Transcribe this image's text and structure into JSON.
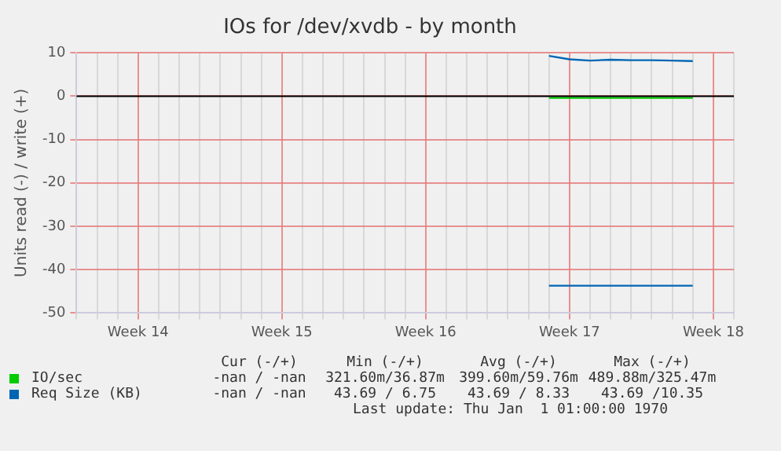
{
  "chart_data": {
    "type": "line",
    "title": "IOs for /dev/xvdb - by month",
    "ylabel": "Units read (-) / write (+)",
    "categories": [
      null,
      null,
      null,
      "Week 14",
      null,
      null,
      null,
      null,
      null,
      null,
      "Week 15",
      null,
      null,
      null,
      null,
      null,
      null,
      "Week 16",
      null,
      null,
      null,
      null,
      null,
      null,
      "Week 17",
      null,
      null,
      null,
      null,
      null,
      null,
      "Week 18",
      null
    ],
    "ylim": [
      -50,
      10
    ],
    "yticks": [
      10,
      0,
      -10,
      -20,
      -30,
      -40,
      -50
    ],
    "grid": true,
    "legend": "bottom",
    "marker": "none",
    "line_style": "solid",
    "ref_lines": [
      {
        "axis": "y",
        "value": 0,
        "color": "#000000"
      }
    ],
    "series": [
      {
        "name": "IO/sec",
        "color": "#00cc00",
        "values": [
          null,
          null,
          null,
          null,
          null,
          null,
          null,
          null,
          null,
          null,
          null,
          null,
          null,
          null,
          null,
          null,
          null,
          null,
          null,
          null,
          null,
          null,
          null,
          -0.4,
          -0.4,
          -0.4,
          -0.4,
          -0.4,
          -0.4,
          -0.4,
          -0.4,
          null,
          null
        ]
      },
      {
        "name": "Req Size (KB)",
        "color": "#0066b3",
        "values": [
          null,
          null,
          null,
          null,
          null,
          null,
          null,
          null,
          null,
          null,
          null,
          null,
          null,
          null,
          null,
          null,
          null,
          null,
          null,
          null,
          null,
          null,
          null,
          9.3,
          8.5,
          8.2,
          8.4,
          8.3,
          8.3,
          8.2,
          8.1,
          null,
          null
        ]
      },
      {
        "color": "#0066b3",
        "values": [
          null,
          null,
          null,
          null,
          null,
          null,
          null,
          null,
          null,
          null,
          null,
          null,
          null,
          null,
          null,
          null,
          null,
          null,
          null,
          null,
          null,
          null,
          null,
          -43.7,
          -43.7,
          -43.7,
          -43.7,
          -43.7,
          -43.7,
          -43.7,
          -43.7,
          null,
          null
        ]
      }
    ],
    "annotations": [
      "Cur (-/+)",
      "Min (-/+)",
      "Avg (-/+)",
      "Max (-/+)",
      "-nan / -nan",
      "321.60m/36.87m",
      "399.60m/59.76m",
      "489.88m/325.47m",
      "-nan / -nan",
      "43.69 / 6.75",
      "43.69 / 8.33",
      "43.69 /10.35",
      "Last update: Thu Jan  1 01:00:00 1970"
    ]
  }
}
